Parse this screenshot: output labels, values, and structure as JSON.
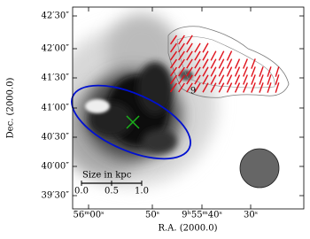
{
  "figure": {
    "xlabel": "R.A. (2000.0)",
    "ylabel": "Dec. (2000.0)",
    "xticks": [
      "56ᵐ00ˢ",
      "50ˢ",
      "9ʰ55ᵐ40ˢ",
      "30ˢ"
    ],
    "yticks": [
      "42′30″",
      "42′00″",
      "41′30″",
      "41′00″",
      "40′30″",
      "40′00″",
      "39′30″"
    ],
    "source_label": "9",
    "scalebar": {
      "title": "Size in kpc",
      "ticks": [
        "0.0",
        "0.5",
        "1.0"
      ]
    }
  }
}
